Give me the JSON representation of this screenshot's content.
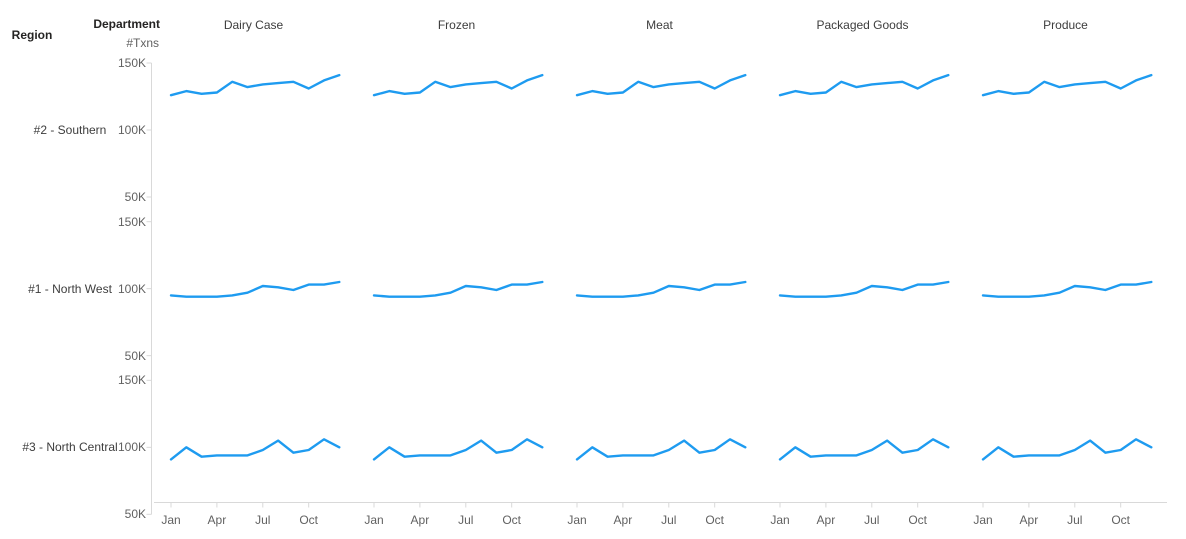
{
  "header": {
    "region_label": "Region",
    "department_label": "Department",
    "value_axis_title": "#Txns"
  },
  "axis": {
    "y_tick_labels": [
      "150K",
      "100K",
      "50K"
    ],
    "x_tick_labels": [
      "Jan",
      "Apr",
      "Jul",
      "Oct"
    ]
  },
  "colors": {
    "line": "#1E9BF0",
    "axis_line": "#D9D9D9",
    "tick_text": "#616161",
    "label_text": "#3D3D3D",
    "header_text": "#252423",
    "background": "#FFFFFF"
  },
  "chart_data": {
    "type": "line",
    "layout": "small-multiples-grid",
    "columns_departments": [
      "Dairy Case",
      "Frozen",
      "Meat",
      "Packaged Goods",
      "Produce"
    ],
    "rows_regions": [
      "#2 - Southern",
      "#1 - North West",
      "#3 - North Central"
    ],
    "x": [
      "Jan",
      "Feb",
      "Mar",
      "Apr",
      "May",
      "Jun",
      "Jul",
      "Aug",
      "Sep",
      "Oct",
      "Nov",
      "Dec"
    ],
    "x_axis_shown_ticks": [
      "Jan",
      "Apr",
      "Jul",
      "Oct"
    ],
    "ylabel": "#Txns",
    "ylim_k": [
      50,
      150
    ],
    "y_ticks_k": [
      150,
      100,
      50
    ],
    "departments_share_region_series": true,
    "series_by_region_k": [
      {
        "region": "#2 - Southern",
        "values_k": [
          126,
          129,
          127,
          128,
          136,
          132,
          134,
          135,
          136,
          131,
          137,
          141
        ]
      },
      {
        "region": "#1 - North West",
        "values_k": [
          95,
          94,
          94,
          94,
          95,
          97,
          102,
          101,
          99,
          103,
          103,
          105
        ]
      },
      {
        "region": "#3 - North Central",
        "values_k": [
          91,
          100,
          93,
          94,
          94,
          94,
          98,
          105,
          96,
          98,
          106,
          100
        ]
      }
    ]
  }
}
